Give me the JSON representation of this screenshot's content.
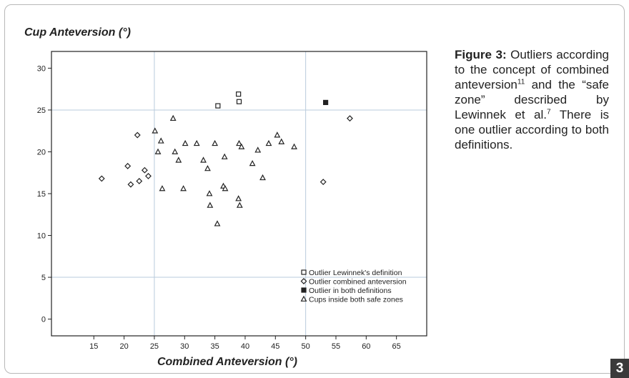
{
  "chart_data": {
    "type": "scatter",
    "ylabel": "Cup Anteversion (°)",
    "xlabel": "Combined Anteversion (°)",
    "x_ticks": [
      15,
      20,
      25,
      30,
      35,
      40,
      45,
      50,
      55,
      60,
      65
    ],
    "y_ticks": [
      0,
      5,
      10,
      15,
      20,
      25,
      30
    ],
    "xlim": [
      8,
      70
    ],
    "ylim": [
      -2,
      32
    ],
    "reference_lines": {
      "x": [
        25,
        50
      ],
      "y": [
        5,
        25
      ]
    },
    "legend_position": "bottom-right",
    "series": [
      {
        "name": "Outlier Lewinnek's definition",
        "marker": "open-square",
        "points": [
          [
            35.5,
            25.5
          ],
          [
            38.9,
            26.9
          ],
          [
            39.0,
            26.0
          ]
        ]
      },
      {
        "name": "Outlier combined anteversion",
        "marker": "open-diamond",
        "points": [
          [
            16.3,
            16.8
          ],
          [
            20.6,
            18.3
          ],
          [
            21.1,
            16.1
          ],
          [
            22.2,
            22.0
          ],
          [
            22.5,
            16.5
          ],
          [
            23.4,
            17.8
          ],
          [
            24.0,
            17.1
          ],
          [
            52.9,
            16.4
          ],
          [
            57.3,
            24.0
          ]
        ]
      },
      {
        "name": "Outlier in both definitions",
        "marker": "filled-square",
        "points": [
          [
            53.3,
            25.9
          ]
        ]
      },
      {
        "name": "Cups inside both safe zones",
        "marker": "open-triangle",
        "points": [
          [
            25.1,
            22.5
          ],
          [
            25.6,
            20.0
          ],
          [
            26.1,
            21.3
          ],
          [
            26.3,
            15.6
          ],
          [
            28.1,
            24.0
          ],
          [
            28.4,
            20.0
          ],
          [
            29.0,
            19.0
          ],
          [
            29.8,
            15.6
          ],
          [
            30.1,
            21.0
          ],
          [
            32.0,
            21.0
          ],
          [
            33.1,
            19.0
          ],
          [
            33.8,
            18.0
          ],
          [
            34.1,
            15.0
          ],
          [
            34.2,
            13.6
          ],
          [
            35.0,
            21.0
          ],
          [
            35.4,
            11.4
          ],
          [
            36.4,
            15.9
          ],
          [
            36.6,
            19.4
          ],
          [
            36.7,
            15.6
          ],
          [
            38.9,
            14.4
          ],
          [
            39.0,
            21.0
          ],
          [
            39.1,
            13.6
          ],
          [
            39.4,
            20.6
          ],
          [
            41.2,
            18.6
          ],
          [
            42.1,
            20.2
          ],
          [
            42.9,
            16.9
          ],
          [
            43.9,
            21.0
          ],
          [
            45.3,
            22.0
          ],
          [
            46.0,
            21.2
          ],
          [
            48.1,
            20.6
          ]
        ]
      }
    ]
  },
  "caption": {
    "label": "Figure 3:",
    "text_a": " Outliers according to the concept of combined anteversion",
    "sup_a": "11",
    "text_b": " and the “safe zone” described by Lewinnek et al.",
    "sup_b": "7",
    "text_c": " There is one outlier according to both definitions."
  },
  "page_number": "3",
  "colors": {
    "axis": "#222222",
    "marker": "#222222",
    "reference_line": "#b9cbdc",
    "frame": "#b8b8b8",
    "page_badge": "#3a3a3a"
  }
}
